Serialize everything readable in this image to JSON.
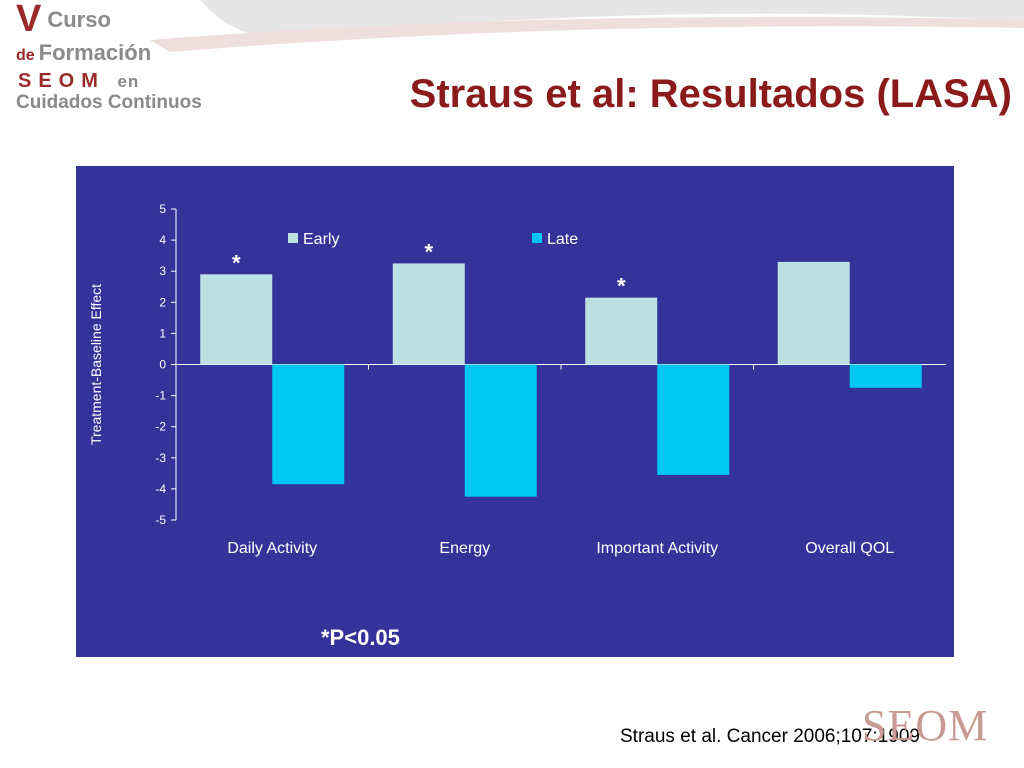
{
  "header": {
    "logo": {
      "line1_big": "V",
      "line1_rest": "Curso",
      "line2_small": "de",
      "line2_rest": "Formación",
      "line3_main": "SEOM",
      "line3_suffix": "en",
      "line4": "Cuidados Continuos"
    },
    "title": "Straus et al: Resultados (LASA)"
  },
  "chart_data": {
    "type": "bar",
    "categories": [
      "Daily Activity",
      "Energy",
      "Important Activity",
      "Overall QOL"
    ],
    "series": [
      {
        "name": "Early",
        "values": [
          2.9,
          3.25,
          2.15,
          3.3
        ],
        "color": "#bde0e3"
      },
      {
        "name": "Late",
        "values": [
          -3.85,
          -4.25,
          -3.55,
          -0.75
        ],
        "color": "#00c6f4"
      }
    ],
    "significance": [
      "*",
      "*",
      "*",
      ""
    ],
    "ylabel": "Treatment-Baseline Effect",
    "ylim": [
      -5,
      5
    ],
    "yticks": [
      5,
      4,
      3,
      2,
      1,
      0,
      -1,
      -2,
      -3,
      -4,
      -5
    ],
    "legend_position": "top",
    "background": "#33339a"
  },
  "footnote": "*P<0.05",
  "citation": "Straus et al. Cancer 2006;107:1909",
  "watermark": "SEOM",
  "colors": {
    "title": "#8b1a1a",
    "panel": "#33339a"
  }
}
